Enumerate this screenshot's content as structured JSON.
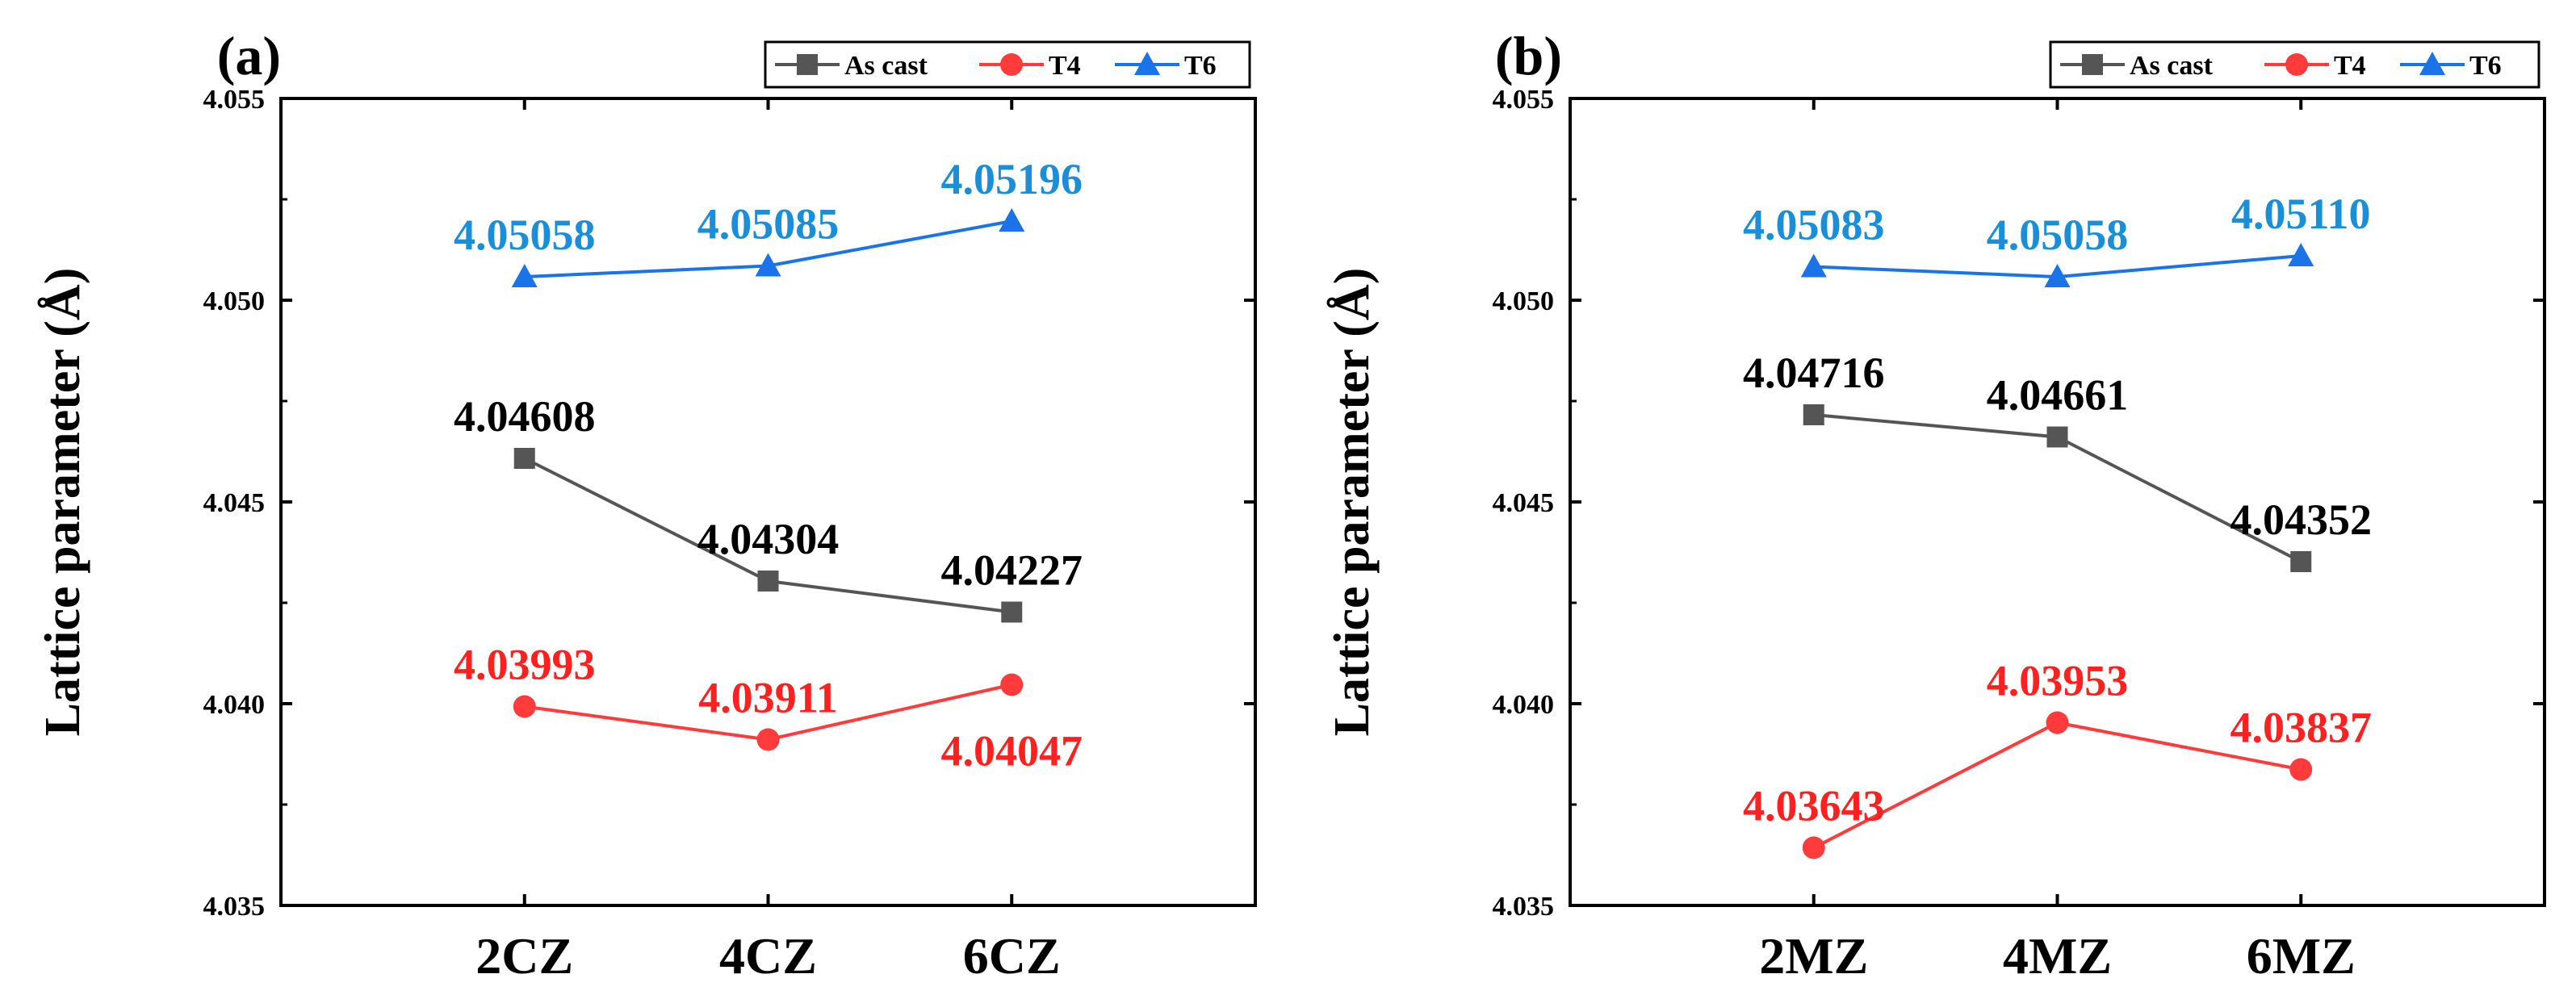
{
  "chart_data": [
    {
      "type": "line",
      "panel_label": "(a)",
      "categories": [
        "2CZ",
        "4CZ",
        "6CZ"
      ],
      "ylabel": "Lattice parameter (Å)",
      "ylim": [
        4.035,
        4.055
      ],
      "yticks": [
        "4.035",
        "4.040",
        "4.045",
        "4.050",
        "4.055"
      ],
      "legend_position": "top-right",
      "series": [
        {
          "name": "As cast",
          "color": "#555555",
          "label_color": "#000000",
          "marker": "square",
          "values": [
            4.04608,
            4.04304,
            4.04227
          ],
          "labels": [
            "4.04608",
            "4.04304",
            "4.04227"
          ],
          "label_side": [
            "above",
            "above",
            "above"
          ]
        },
        {
          "name": "T4",
          "color": "#ff3b3b",
          "label_color": "#ff2020",
          "marker": "circle",
          "values": [
            4.03993,
            4.03911,
            4.04047
          ],
          "labels": [
            "4.03993",
            "4.03911",
            "4.04047"
          ],
          "label_side": [
            "above",
            "above",
            "below"
          ]
        },
        {
          "name": "T6",
          "color": "#1a73e8",
          "label_color": "#1a8fd8",
          "marker": "triangle",
          "values": [
            4.05058,
            4.05085,
            4.05196
          ],
          "labels": [
            "4.05058",
            "4.05085",
            "4.05196"
          ],
          "label_side": [
            "above",
            "above",
            "above"
          ]
        }
      ]
    },
    {
      "type": "line",
      "panel_label": "(b)",
      "categories": [
        "2MZ",
        "4MZ",
        "6MZ"
      ],
      "ylabel": "Lattice parameter (Å)",
      "ylim": [
        4.035,
        4.055
      ],
      "yticks": [
        "4.035",
        "4.040",
        "4.045",
        "4.050",
        "4.055"
      ],
      "legend_position": "top-right",
      "series": [
        {
          "name": "As cast",
          "color": "#555555",
          "label_color": "#000000",
          "marker": "square",
          "values": [
            4.04716,
            4.04661,
            4.04352
          ],
          "labels": [
            "4.04716",
            "4.04661",
            "4.04352"
          ],
          "label_side": [
            "above",
            "above",
            "above"
          ]
        },
        {
          "name": "T4",
          "color": "#ff3b3b",
          "label_color": "#ff2020",
          "marker": "circle",
          "values": [
            4.03643,
            4.03953,
            4.03837
          ],
          "labels": [
            "4.03643",
            "4.03953",
            "4.03837"
          ],
          "label_side": [
            "above",
            "above",
            "above"
          ]
        },
        {
          "name": "T6",
          "color": "#1a73e8",
          "label_color": "#1a8fd8",
          "marker": "triangle",
          "values": [
            4.05083,
            4.05058,
            4.0511
          ],
          "labels": [
            "4.05083",
            "4.05058",
            "4.05110"
          ],
          "label_side": [
            "above",
            "above",
            "above"
          ]
        }
      ]
    }
  ]
}
